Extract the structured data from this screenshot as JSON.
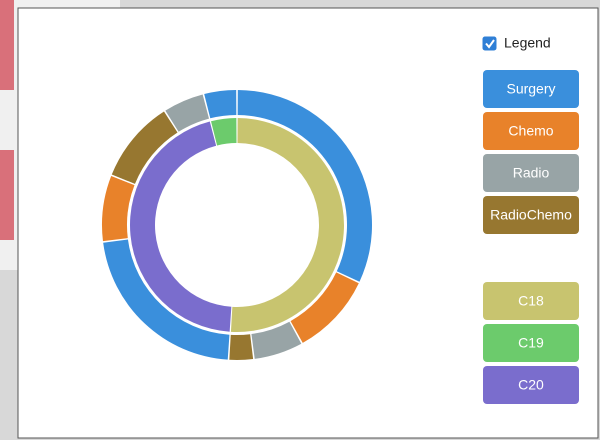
{
  "chart_data": {
    "type": "sunburst",
    "legend_label": "Legend",
    "legend_checked": true,
    "treatments": [
      {
        "name": "Surgery",
        "color": "#3a8fdc"
      },
      {
        "name": "Chemo",
        "color": "#e8822a"
      },
      {
        "name": "Radio",
        "color": "#98a4a6"
      },
      {
        "name": "RadioChemo",
        "color": "#977730"
      }
    ],
    "nodes": [
      {
        "name": "C18",
        "color": "#c8c46f",
        "value": 51,
        "children": [
          {
            "name": "Surgery",
            "value": 32
          },
          {
            "name": "Chemo",
            "value": 10
          },
          {
            "name": "Radio",
            "value": 6
          },
          {
            "name": "RadioChemo",
            "value": 3
          }
        ]
      },
      {
        "name": "C20",
        "color": "#7a6dcd",
        "value": 45,
        "children": [
          {
            "name": "Surgery",
            "value": 22
          },
          {
            "name": "Chemo",
            "value": 8
          },
          {
            "name": "RadioChemo",
            "value": 10
          },
          {
            "name": "Radio",
            "value": 5
          }
        ]
      },
      {
        "name": "C19",
        "color": "#6ccb6c",
        "value": 4,
        "children": [
          {
            "name": "Surgery",
            "value": 4
          }
        ]
      }
    ],
    "legend_sites": [
      "C18",
      "C19",
      "C20"
    ]
  }
}
